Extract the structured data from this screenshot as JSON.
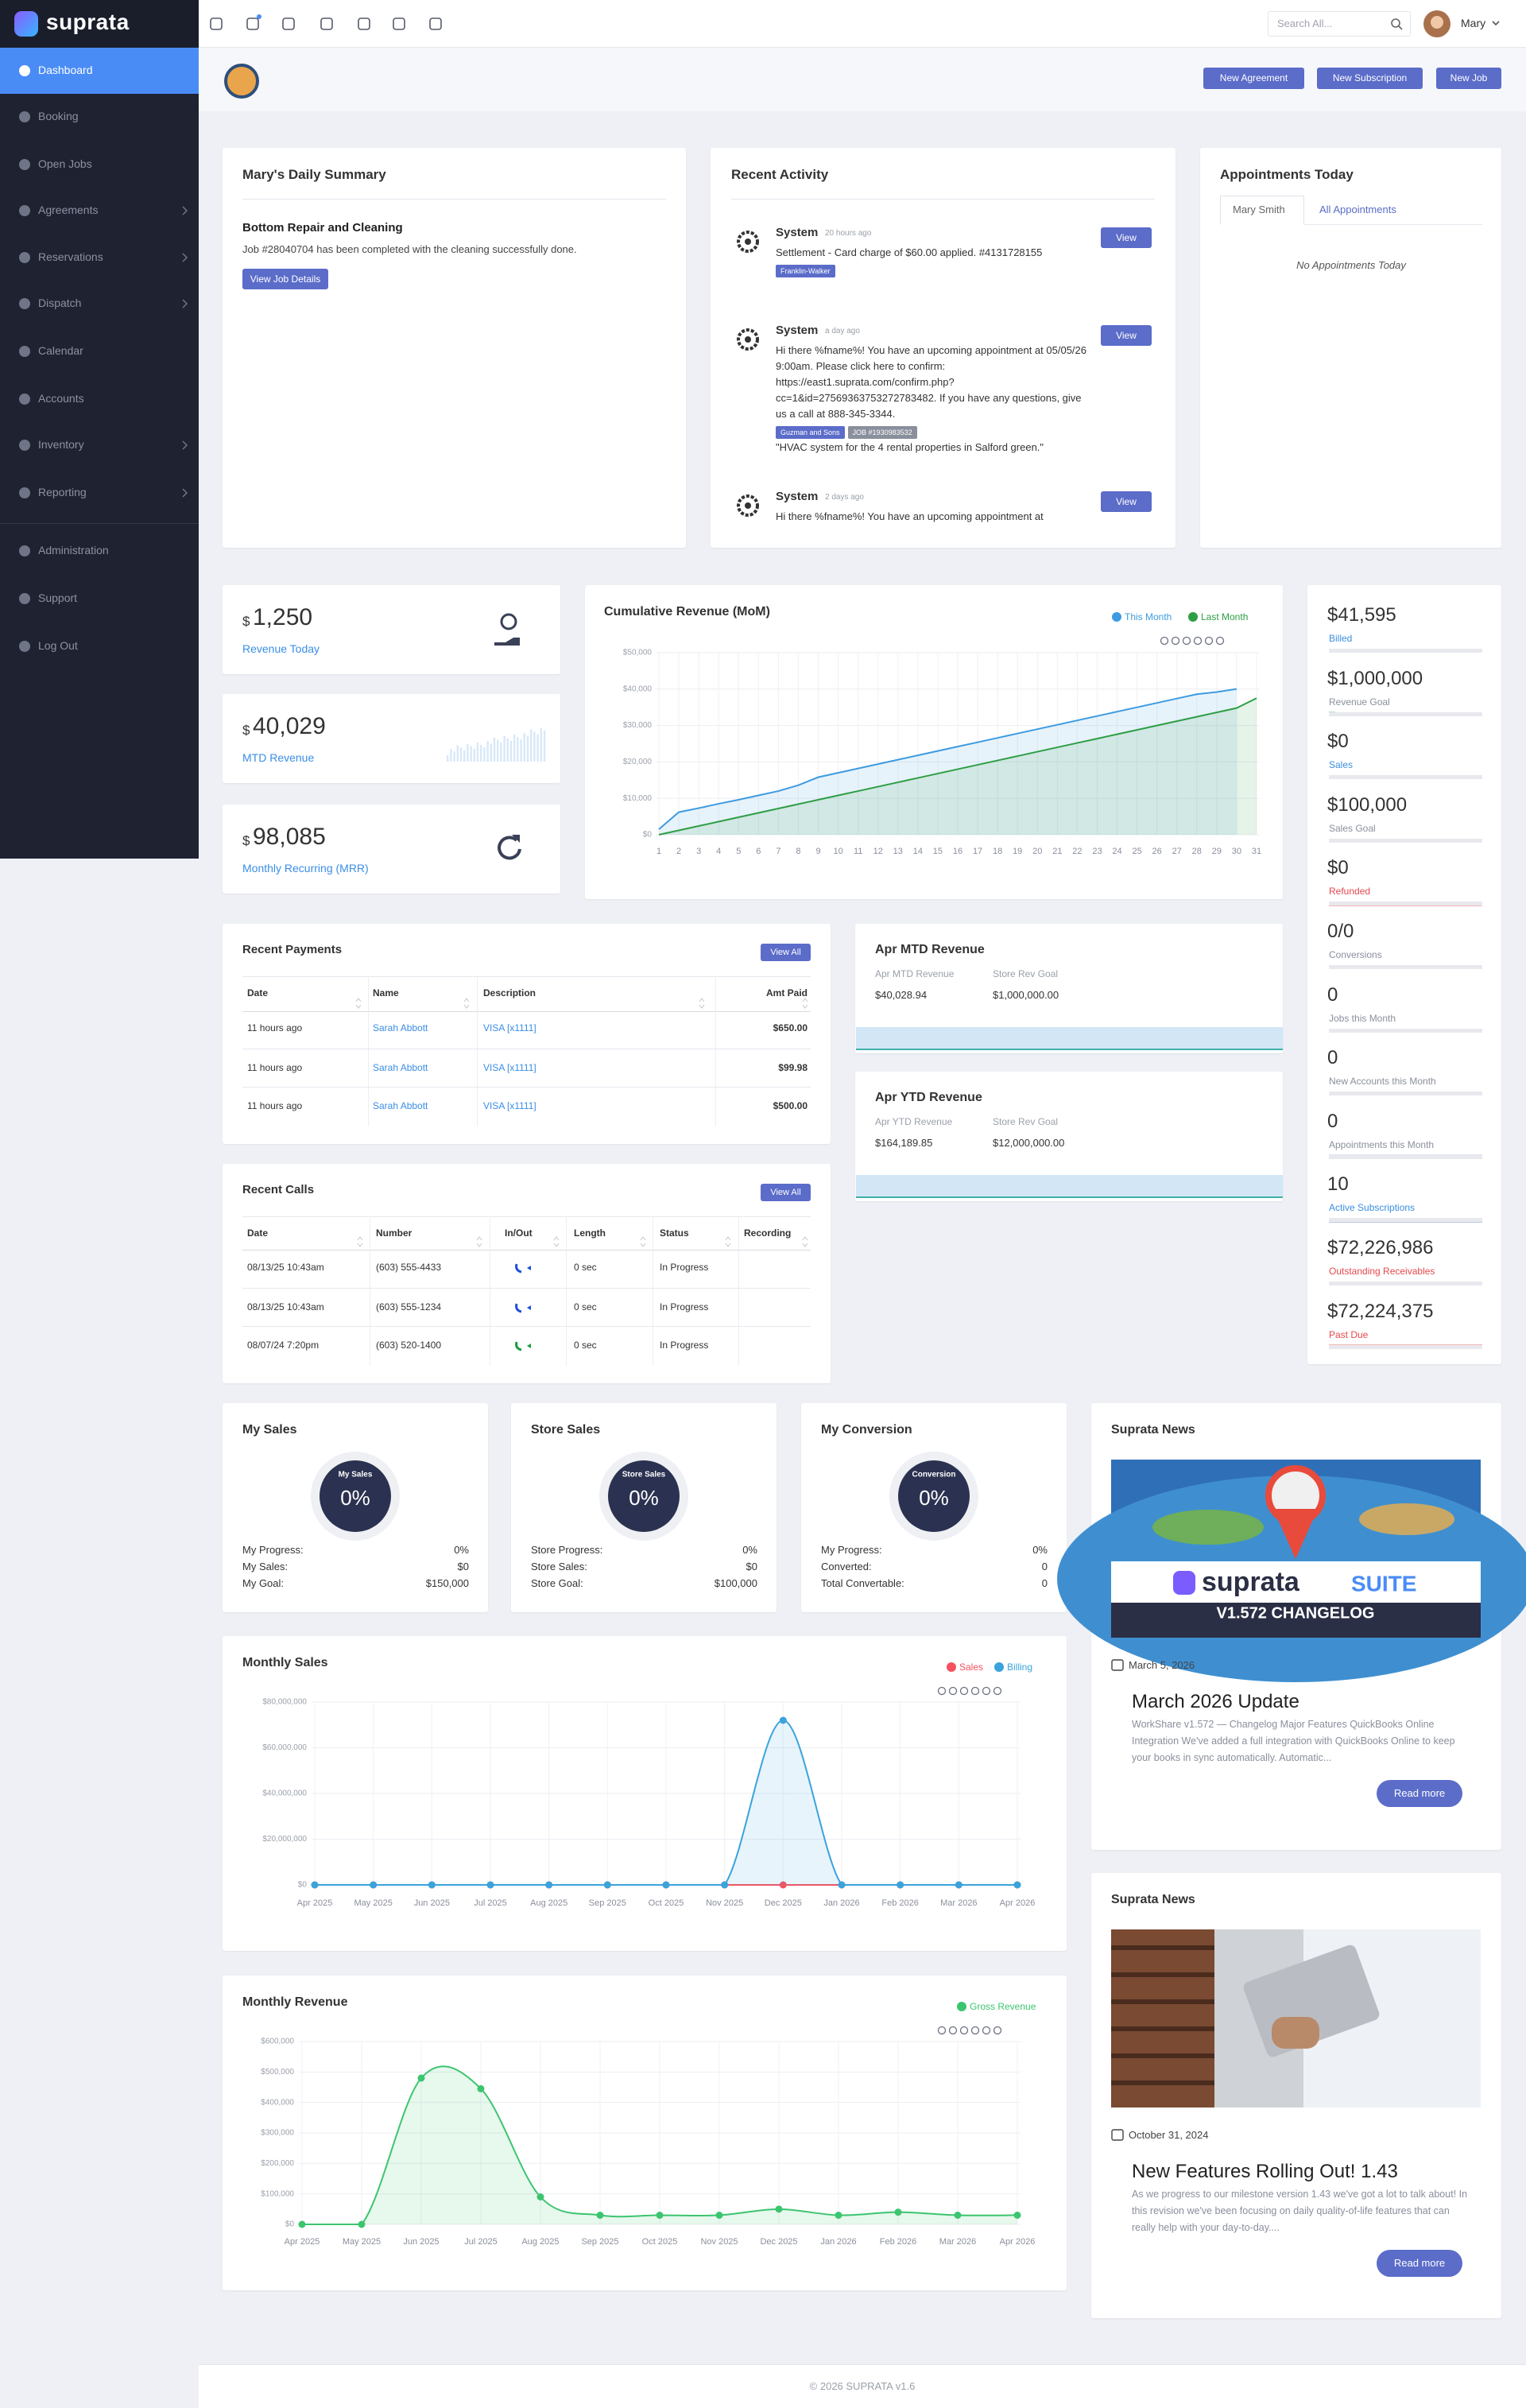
{
  "sidebar": {
    "brand": "suprata",
    "items": [
      {
        "label": "Dashboard",
        "active": true
      },
      {
        "label": "Booking"
      },
      {
        "label": "Open Jobs"
      },
      {
        "label": "Agreements",
        "submenu": true
      },
      {
        "label": "Reservations",
        "submenu": true
      },
      {
        "label": "Dispatch",
        "submenu": true
      },
      {
        "label": "Calendar"
      },
      {
        "label": "Accounts"
      },
      {
        "label": "Inventory",
        "submenu": true
      },
      {
        "label": "Reporting",
        "submenu": true
      },
      {
        "label": "Administration"
      },
      {
        "label": "Support"
      },
      {
        "label": "Log Out"
      }
    ]
  },
  "topbar": {
    "search_placeholder": "Search All...",
    "user": "Mary"
  },
  "header": {
    "buttons": [
      "New Agreement",
      "New Subscription",
      "New Job"
    ]
  },
  "daily_summary": {
    "title": "Mary's Daily Summary",
    "job_title": "Bottom Repair and Cleaning",
    "job_text": "Job #28040704 has been completed with the cleaning successfully done.",
    "button": "View Job Details"
  },
  "recent_activity": {
    "title": "Recent Activity",
    "items": [
      {
        "author": "System",
        "time": "20 hours ago",
        "text": "Settlement - Card charge of $60.00 applied. #4131728155",
        "tags": [
          "Franklin-Walker"
        ],
        "button": "View"
      },
      {
        "author": "System",
        "time": "a day ago",
        "text": "Hi there %fname%! You have an upcoming appointment at 05/05/26 9:00am. Please click here to confirm: https://east1.suprata.com/confirm.php?cc=1&id=27569363753272783482. If you have any questions, give us a call at 888-345-3344.",
        "tags": [
          "Guzman and Sons",
          "JOB #1930983532"
        ],
        "note": "\"HVAC system for the 4 rental properties in Salford green.\"",
        "button": "View"
      },
      {
        "author": "System",
        "time": "2 days ago",
        "text": "Hi there %fname%! You have an upcoming appointment at",
        "button": "View"
      }
    ]
  },
  "appointments": {
    "title": "Appointments Today",
    "tabs": [
      "Mary Smith",
      "All Appointments"
    ],
    "empty": "No Appointments Today"
  },
  "kpis": [
    {
      "currency": "$",
      "amount": "1,250",
      "label": "Revenue Today"
    },
    {
      "currency": "$",
      "amount": "40,029",
      "label": "MTD Revenue"
    },
    {
      "currency": "$",
      "amount": "98,085",
      "label": "Monthly Recurring (MRR)"
    }
  ],
  "cumulative_revenue": {
    "type": "line",
    "title": "Cumulative Revenue (MoM)",
    "legend": "top-right",
    "grid": true,
    "x": [
      1,
      2,
      3,
      4,
      5,
      6,
      7,
      8,
      9,
      10,
      11,
      12,
      13,
      14,
      15,
      16,
      17,
      18,
      19,
      20,
      21,
      22,
      23,
      24,
      25,
      26,
      27,
      28,
      29,
      30,
      31
    ],
    "xlim": [
      1,
      31
    ],
    "xticks": [
      1,
      2,
      3,
      4,
      5,
      6,
      7,
      8,
      9,
      10,
      11,
      12,
      13,
      14,
      15,
      16,
      17,
      18,
      19,
      20,
      21,
      22,
      23,
      24,
      25,
      26,
      27,
      28,
      29,
      30,
      31
    ],
    "ylim": [
      0,
      50000
    ],
    "yticks": [
      {
        "value": 0,
        "label": "$0"
      },
      {
        "value": 10000,
        "label": "$10,000"
      },
      {
        "value": 20000,
        "label": "$20,000"
      },
      {
        "value": 30000,
        "label": "$30,000"
      },
      {
        "value": 40000,
        "label": "$40,000"
      },
      {
        "value": 50000,
        "label": "$50,000"
      }
    ],
    "series": [
      {
        "name": "This Month",
        "color": "#3d9be0",
        "area": true,
        "values": [
          1500,
          6200,
          7300,
          8500,
          9600,
          10800,
          12000,
          13600,
          15800,
          17000,
          18200,
          19400,
          20600,
          21800,
          23000,
          24200,
          25400,
          26600,
          27800,
          29000,
          30200,
          31400,
          32600,
          33800,
          35000,
          36200,
          37400,
          38600,
          39200,
          40029,
          null
        ]
      },
      {
        "name": "Last Month",
        "color": "#2e9e44",
        "area": true,
        "values": [
          0,
          1200,
          2400,
          3600,
          4800,
          6000,
          7200,
          8400,
          9600,
          10800,
          12000,
          13200,
          14400,
          15600,
          16800,
          18000,
          19200,
          20400,
          21600,
          22800,
          24000,
          25200,
          26400,
          27600,
          28800,
          30000,
          31200,
          32400,
          33600,
          34800,
          37500
        ]
      }
    ]
  },
  "stats": [
    {
      "value": "$41,595",
      "label": "Billed",
      "label_color": "#3b8ee0",
      "bar_color": "#4cb36e",
      "progress": 4
    },
    {
      "value": "$1,000,000",
      "label": "Revenue Goal",
      "label_color": "#8a8f9c",
      "bar_color": "#4cb36e",
      "progress": 4
    },
    {
      "value": "$0",
      "label": "Sales",
      "label_color": "#3b8ee0",
      "bar_color": "#4cb36e",
      "progress": 0
    },
    {
      "value": "$100,000",
      "label": "Sales Goal",
      "label_color": "#8a8f9c",
      "bar_color": "#4cb36e",
      "progress": 0
    },
    {
      "value": "$0",
      "label": "Refunded",
      "label_color": "#e5484d",
      "bar_color": "#e5484d",
      "progress": 100
    },
    {
      "value": "0/0",
      "label": "Conversions",
      "label_color": "#8a8f9c",
      "bar_color": "#4cb36e",
      "progress": 0
    },
    {
      "value": "0",
      "label": "Jobs this Month",
      "label_color": "#8a8f9c",
      "bar_color": "#4cb36e",
      "progress": 0
    },
    {
      "value": "0",
      "label": "New Accounts this Month",
      "label_color": "#8a8f9c",
      "bar_color": "#4cb36e",
      "progress": 0
    },
    {
      "value": "0",
      "label": "Appointments this Month",
      "label_color": "#8a8f9c",
      "bar_color": "#7b86a6",
      "progress": 100
    },
    {
      "value": "10",
      "label": "Active Subscriptions",
      "label_color": "#3b8ee0",
      "bar_color": "#5b6cc9",
      "progress": 100
    },
    {
      "value": "$72,226,986",
      "label": "Outstanding Receivables",
      "label_color": "#e5484d",
      "bar_color": "#e5484d",
      "progress": 100
    },
    {
      "value": "$72,224,375",
      "label": "Past Due",
      "label_color": "#e5484d",
      "bar_color": "#e5484d",
      "progress": 100
    }
  ],
  "recent_payments": {
    "title": "Recent Payments",
    "button": "View All",
    "columns": [
      "Date",
      "Name",
      "Description",
      "Amt Paid"
    ],
    "rows": [
      [
        "11 hours ago",
        "Sarah Abbott",
        "VISA [x1111]",
        "$650.00"
      ],
      [
        "11 hours ago",
        "Sarah Abbott",
        "VISA [x1111]",
        "$99.98"
      ],
      [
        "11 hours ago",
        "Sarah Abbott",
        "VISA [x1111]",
        "$500.00"
      ]
    ]
  },
  "recent_calls": {
    "title": "Recent Calls",
    "button": "View All",
    "columns": [
      "Date",
      "Number",
      "In/Out",
      "Length",
      "Status",
      "Recording"
    ],
    "rows": [
      [
        "08/13/25 10:43am",
        "(603) 555-4433",
        "0 sec",
        "In Progress"
      ],
      [
        "08/13/25 10:43am",
        "(603) 555-1234",
        "0 sec",
        "In Progress"
      ],
      [
        "08/07/24 7:20pm",
        "(603) 520-1400",
        "0 sec",
        "In Progress"
      ]
    ],
    "direction_colors": [
      "#1d4fd8",
      "#1d4fd8",
      "#1a9b3c"
    ]
  },
  "apr_mtd": {
    "title": "Apr MTD Revenue",
    "labels": [
      "Apr MTD Revenue",
      "Store Rev Goal"
    ],
    "values": [
      "$40,028.94",
      "$1,000,000.00"
    ]
  },
  "apr_ytd": {
    "title": "Apr YTD Revenue",
    "labels": [
      "Apr YTD Revenue",
      "Store Rev Goal"
    ],
    "values": [
      "$164,189.85",
      "$12,000,000.00"
    ]
  },
  "gauges": [
    {
      "title": "My Sales",
      "gauge_label": "My Sales",
      "gauge_value": "0%",
      "rows": [
        [
          "My Progress:",
          "0%"
        ],
        [
          "My Sales:",
          "$0"
        ],
        [
          "My Goal:",
          "$150,000"
        ]
      ]
    },
    {
      "title": "Store Sales",
      "gauge_label": "Store Sales",
      "gauge_value": "0%",
      "rows": [
        [
          "Store Progress:",
          "0%"
        ],
        [
          "Store Sales:",
          "$0"
        ],
        [
          "Store Goal:",
          "$100,000"
        ]
      ]
    },
    {
      "title": "My Conversion",
      "gauge_label": "Conversion",
      "gauge_value": "0%",
      "rows": [
        [
          "My Progress:",
          "0%"
        ],
        [
          "Converted:",
          "0"
        ],
        [
          "Total Convertable:",
          "0"
        ]
      ]
    }
  ],
  "monthly_sales": {
    "type": "line",
    "title": "Monthly Sales",
    "legend": "top-right",
    "grid": true,
    "smooth": true,
    "markers": true,
    "categories": [
      "Apr 2025",
      "May 2025",
      "Jun 2025",
      "Jul 2025",
      "Aug 2025",
      "Sep 2025",
      "Oct 2025",
      "Nov 2025",
      "Dec 2025",
      "Jan 2026",
      "Feb 2026",
      "Mar 2026",
      "Apr 2026"
    ],
    "ylim": [
      0,
      80000000
    ],
    "yticks": [
      {
        "value": 0,
        "label": "$0"
      },
      {
        "value": 20000000,
        "label": "$20,000,000"
      },
      {
        "value": 40000000,
        "label": "$40,000,000"
      },
      {
        "value": 60000000,
        "label": "$60,000,000"
      },
      {
        "value": 80000000,
        "label": "$80,000,000"
      }
    ],
    "series": [
      {
        "name": "Sales",
        "color": "#f4525f",
        "area": false,
        "values": [
          0,
          0,
          0,
          0,
          0,
          0,
          0,
          0,
          0,
          0,
          0,
          0,
          0
        ]
      },
      {
        "name": "Billing",
        "color": "#3aa3dc",
        "area": true,
        "values": [
          0,
          0,
          0,
          0,
          0,
          0,
          0,
          0,
          72000000,
          0,
          0,
          0,
          0
        ]
      }
    ]
  },
  "monthly_revenue": {
    "type": "line",
    "title": "Monthly Revenue",
    "legend": "top-right",
    "grid": true,
    "smooth": true,
    "markers": true,
    "categories": [
      "Apr 2025",
      "May 2025",
      "Jun 2025",
      "Jul 2025",
      "Aug 2025",
      "Sep 2025",
      "Oct 2025",
      "Nov 2025",
      "Dec 2025",
      "Jan 2026",
      "Feb 2026",
      "Mar 2026",
      "Apr 2026"
    ],
    "ylim": [
      0,
      600000
    ],
    "yticks": [
      {
        "value": 0,
        "label": "$0"
      },
      {
        "value": 100000,
        "label": "$100,000"
      },
      {
        "value": 200000,
        "label": "$200,000"
      },
      {
        "value": 300000,
        "label": "$300,000"
      },
      {
        "value": 400000,
        "label": "$400,000"
      },
      {
        "value": 500000,
        "label": "$500,000"
      },
      {
        "value": 600000,
        "label": "$600,000"
      }
    ],
    "series": [
      {
        "name": "Gross Revenue",
        "color": "#3cc56f",
        "area": true,
        "values": [
          0,
          0,
          480000,
          445000,
          90000,
          30000,
          30000,
          30000,
          50000,
          30000,
          40000,
          30000,
          30000
        ]
      }
    ]
  },
  "news": [
    {
      "title": "Suprata News",
      "image_text": [
        "suprata",
        "SUITE",
        "V1.572 CHANGELOG"
      ],
      "date": "March 5, 2026",
      "headline": "March 2026 Update",
      "text": "WorkShare v1.572 — Changelog Major Features QuickBooks Online Integration We've added a full integration with QuickBooks Online to keep your books in sync automatically. Automatic...",
      "button": "Read more"
    },
    {
      "title": "Suprata News",
      "date": "October 31, 2024",
      "headline": "New Features Rolling Out! 1.43",
      "text": "As we progress to our milestone version 1.43 we've got a lot to talk about! In this revision we've been focusing on daily quality-of-life features that can really help with your day-to-day....",
      "button": "Read more"
    }
  ],
  "footer": "© 2026 SUPRATA v1.6"
}
